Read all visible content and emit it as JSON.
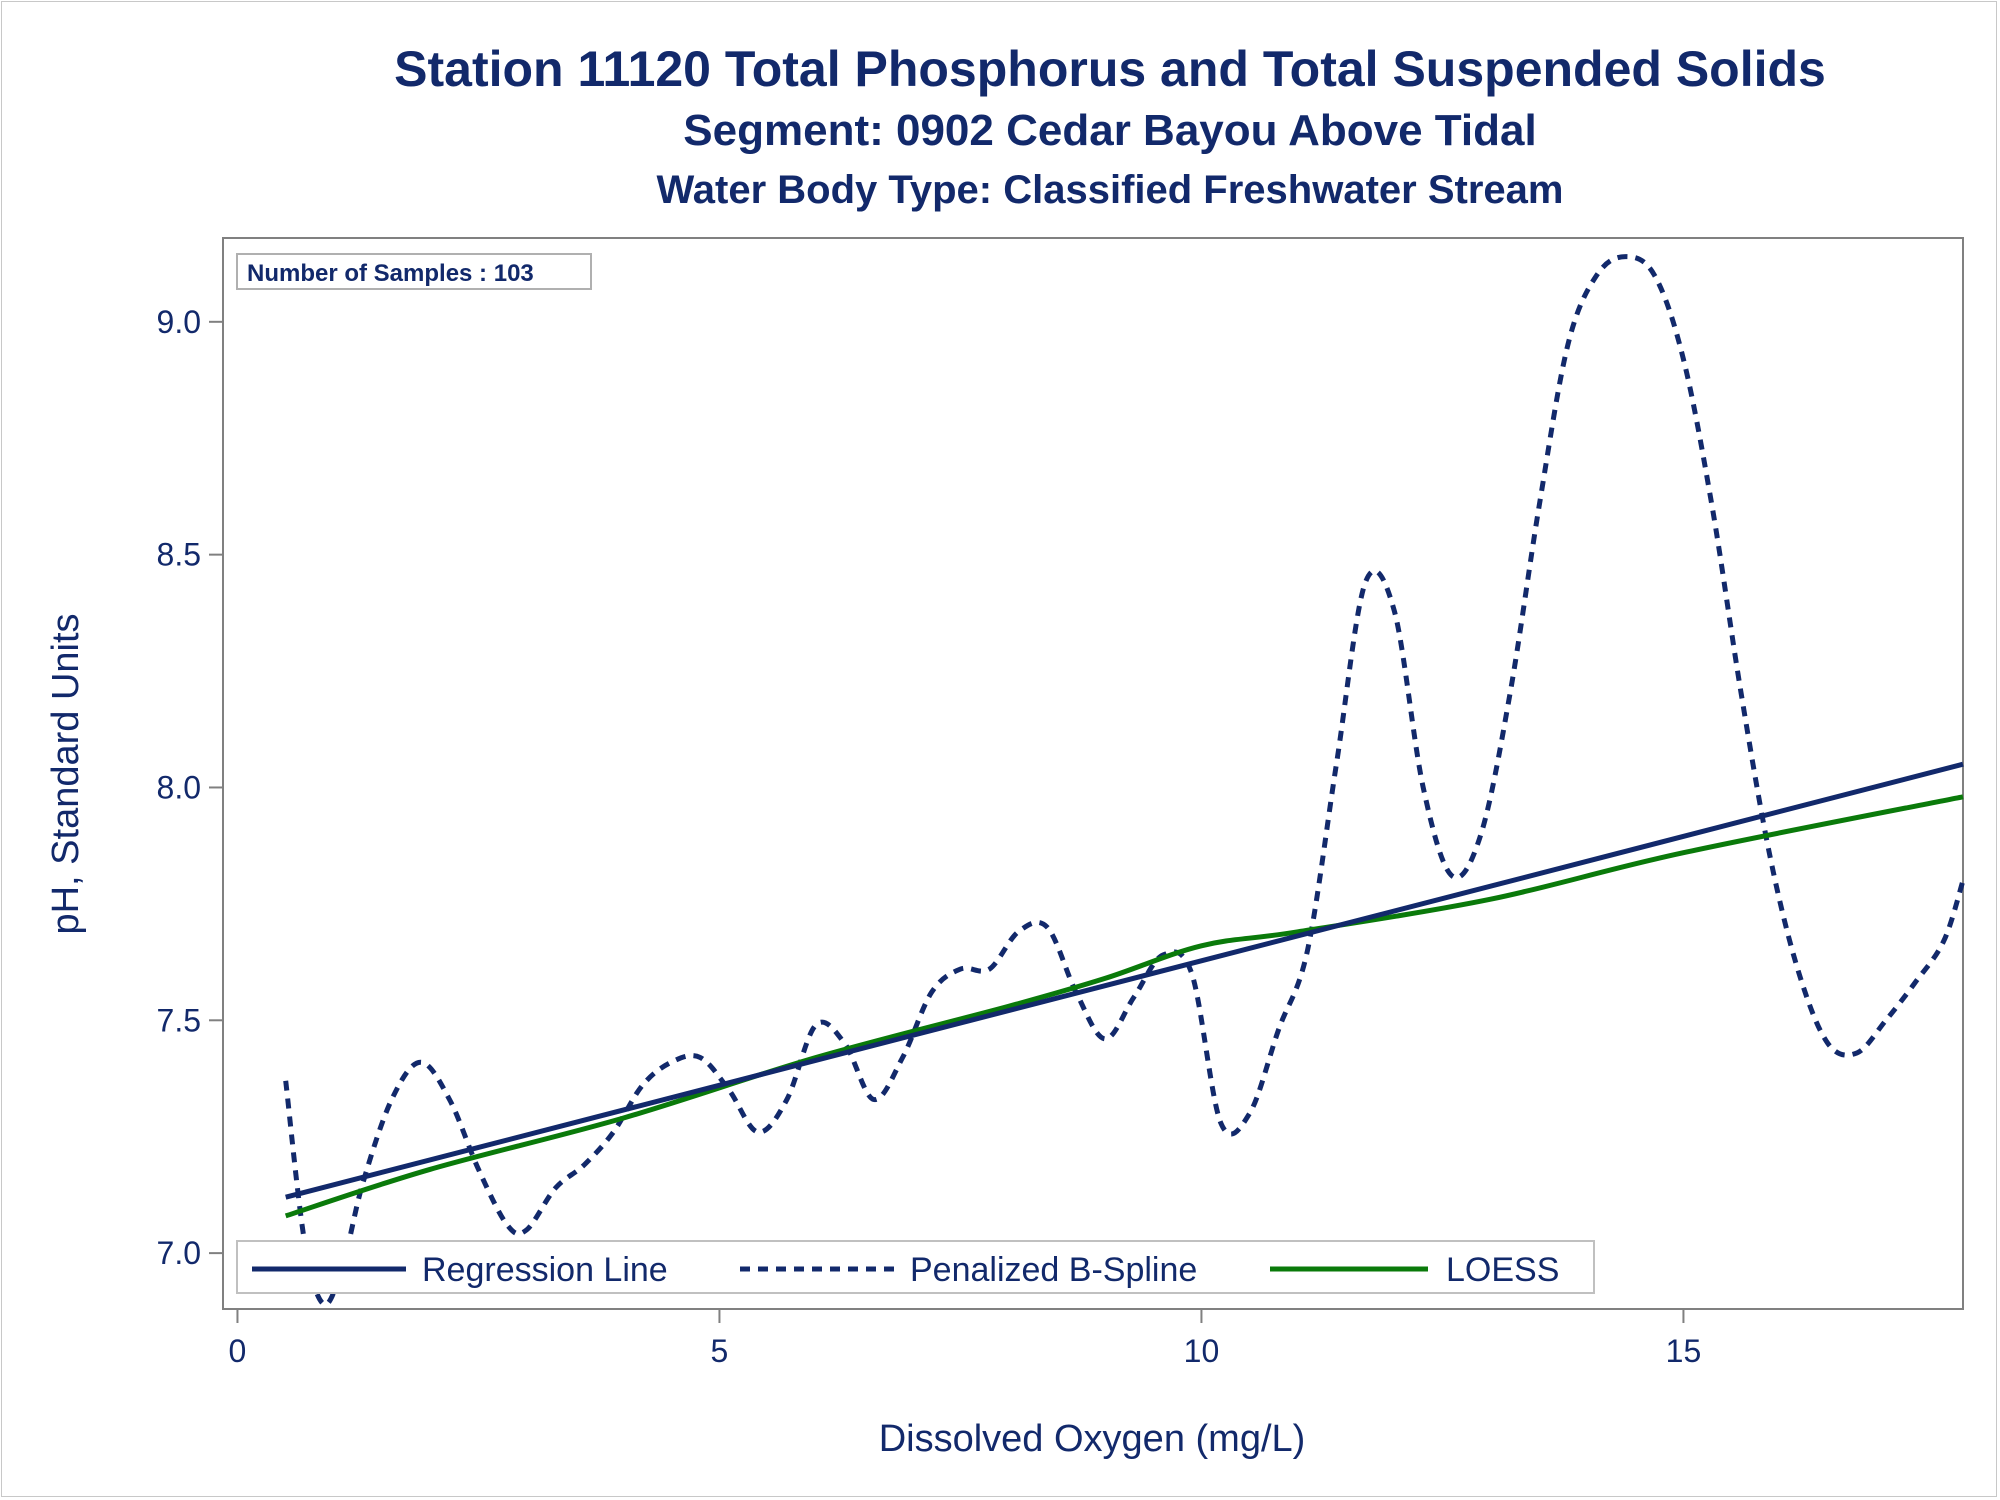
{
  "titles": {
    "line1": "Station 11120  Total Phosphorus and Total Suspended Solids",
    "line2": "Segment: 0902  Cedar Bayou Above Tidal",
    "line3": "Water Body Type: Classified Freshwater Stream"
  },
  "inset_label": "Number of Samples : 103",
  "colors": {
    "text": "#12296b",
    "regression": "#12296b",
    "spline": "#12296b",
    "loess": "#0a7a0a",
    "axis": "#808080"
  },
  "chart_data": {
    "type": "line",
    "title": "Station 11120  Total Phosphorus and Total Suspended Solids",
    "xlabel": "Dissolved Oxygen (mg/L)",
    "ylabel": "pH, Standard Units",
    "xlim": [
      -0.15,
      17.9
    ],
    "ylim": [
      6.88,
      9.18
    ],
    "xticks": [
      0,
      5,
      10,
      15
    ],
    "yticks": [
      7.0,
      7.5,
      8.0,
      8.5,
      9.0
    ],
    "xtick_labels": [
      "0",
      "5",
      "10",
      "15"
    ],
    "ytick_labels": [
      "7.0",
      "7.5",
      "8.0",
      "8.5",
      "9.0"
    ],
    "grid": false,
    "legend_position": "bottom-inside",
    "series": [
      {
        "name": "Regression Line",
        "style": "solid",
        "x": [
          0.5,
          17.9
        ],
        "y": [
          7.12,
          8.05
        ]
      },
      {
        "name": "Penalized B-Spline",
        "style": "dashed",
        "x": [
          0.5,
          0.7,
          0.9,
          1.1,
          1.3,
          1.6,
          1.9,
          2.2,
          2.5,
          2.8,
          3.0,
          3.3,
          3.6,
          3.9,
          4.2,
          4.5,
          4.8,
          5.1,
          5.4,
          5.7,
          6.0,
          6.3,
          6.6,
          6.9,
          7.2,
          7.5,
          7.8,
          8.1,
          8.4,
          8.7,
          9.0,
          9.3,
          9.6,
          9.9,
          10.2,
          10.5,
          10.8,
          11.1,
          11.4,
          11.7,
          12.0,
          12.3,
          12.6,
          12.9,
          13.2,
          13.5,
          13.8,
          14.1,
          14.4,
          14.7,
          15.0,
          15.3,
          15.6,
          15.9,
          16.2,
          16.5,
          16.8,
          17.1,
          17.4,
          17.7,
          17.9
        ],
        "y": [
          7.37,
          7.02,
          6.89,
          6.98,
          7.15,
          7.33,
          7.41,
          7.33,
          7.18,
          7.06,
          7.05,
          7.14,
          7.19,
          7.26,
          7.36,
          7.41,
          7.42,
          7.35,
          7.26,
          7.33,
          7.49,
          7.45,
          7.33,
          7.42,
          7.56,
          7.61,
          7.61,
          7.69,
          7.7,
          7.56,
          7.46,
          7.55,
          7.64,
          7.6,
          7.28,
          7.3,
          7.48,
          7.65,
          8.05,
          8.44,
          8.38,
          8.0,
          7.81,
          7.9,
          8.2,
          8.6,
          8.95,
          9.1,
          9.14,
          9.1,
          8.92,
          8.6,
          8.2,
          7.85,
          7.6,
          7.45,
          7.43,
          7.5,
          7.58,
          7.67,
          7.8
        ]
      },
      {
        "name": "LOESS",
        "style": "solid",
        "x": [
          0.5,
          2.0,
          4.0,
          6.0,
          8.0,
          9.0,
          10.0,
          11.0,
          13.0,
          15.0,
          17.9
        ],
        "y": [
          7.08,
          7.18,
          7.29,
          7.42,
          7.53,
          7.59,
          7.66,
          7.69,
          7.76,
          7.86,
          7.98
        ]
      }
    ]
  }
}
